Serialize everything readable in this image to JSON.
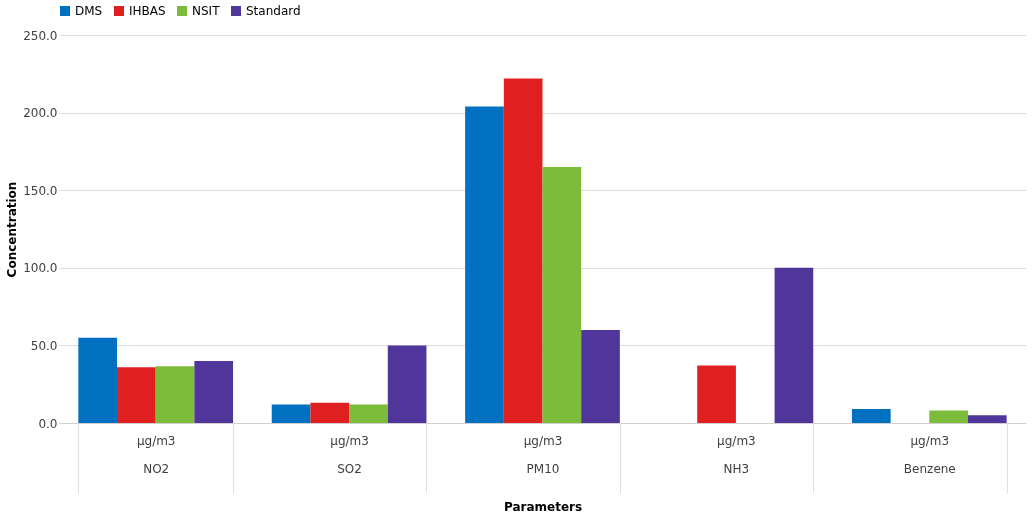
{
  "chart_data": {
    "type": "bar",
    "xlabel": "Parameters",
    "ylabel": "Concentration",
    "categories": [
      "NO2",
      "SO2",
      "PM10",
      "NH3",
      "Benzene"
    ],
    "series": [
      {
        "name": "DMS",
        "color": "#0070c0",
        "values": [
          55,
          12,
          204,
          null,
          9
        ]
      },
      {
        "name": "IHBAS",
        "color": "#e02020",
        "values": [
          36,
          13,
          222,
          37,
          null
        ]
      },
      {
        "name": "NSIT",
        "color": "#7dbb3a",
        "values": [
          36.5,
          12,
          165,
          null,
          8
        ]
      },
      {
        "name": "Standard",
        "color": "#50369a",
        "values": [
          40,
          50,
          60,
          100,
          5
        ]
      }
    ],
    "annotations": [
      "µg/m3",
      "µg/m3",
      "µg/m3",
      "µg/m3",
      "µg/m3"
    ],
    "ylim": [
      0,
      250
    ],
    "yticks": [
      {
        "value": 0,
        "label": "0.0"
      },
      {
        "value": 50,
        "label": "50.0"
      },
      {
        "value": 100,
        "label": "100.0"
      },
      {
        "value": 150,
        "label": "150.0"
      },
      {
        "value": 200,
        "label": "200.0"
      },
      {
        "value": 250,
        "label": "250.0"
      }
    ],
    "grid": "y",
    "legend": "top"
  }
}
